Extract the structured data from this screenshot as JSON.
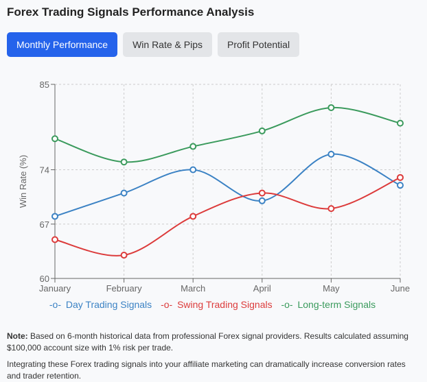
{
  "title": "Forex Trading Signals Performance Analysis",
  "tabs": [
    {
      "label": "Monthly Performance",
      "active": true
    },
    {
      "label": "Win Rate & Pips"
    },
    {
      "label": "Profit Potential"
    }
  ],
  "chart_data": {
    "type": "line",
    "categories": [
      "January",
      "February",
      "March",
      "April",
      "May",
      "June"
    ],
    "ylabel": "Win Rate (%)",
    "ylim": [
      60,
      85
    ],
    "yticks": [
      60,
      67,
      74,
      85
    ],
    "grid": true,
    "legend": "bottom",
    "series": [
      {
        "name": "Day Trading Signals",
        "color": "#3b82c4",
        "values": [
          68,
          71,
          74,
          70,
          76,
          72
        ]
      },
      {
        "name": "Swing Trading Signals",
        "color": "#dc3b3b",
        "values": [
          65,
          63,
          68,
          71,
          69,
          73
        ]
      },
      {
        "name": "Long-term Signals",
        "color": "#3a9a5c",
        "values": [
          78,
          75,
          77,
          79,
          82,
          80
        ]
      }
    ]
  },
  "note": {
    "label": "Note:",
    "text": " Based on 6-month historical data from professional Forex signal providers. Results calculated assuming $100,000 account size with 1% risk per trade."
  },
  "footer": "Integrating these Forex trading signals into your affiliate marketing can dramatically increase conversion rates and trader retention."
}
